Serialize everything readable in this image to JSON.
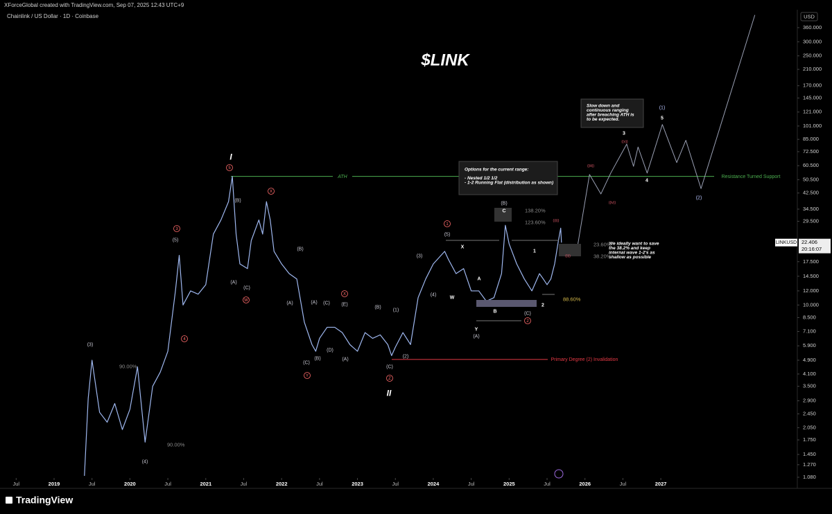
{
  "header": "XForceGlobal created with TradingView.com, Sep 07, 2025 12:43 UTC+9",
  "logo": "TradingView",
  "chart_data": {
    "type": "line",
    "title": "$LINK",
    "symbol": "Chainlink / US Dollar · 1D · Coinbase",
    "currency": "USD",
    "countdown": "20:16:07",
    "log_scale": true,
    "xlim": [
      2018.36,
      2028.8
    ],
    "xticks": [
      {
        "value": 2018.5,
        "label": "Jul"
      },
      2019,
      {
        "value": 2019.5,
        "label": "Jul"
      },
      2020,
      {
        "value": 2020.5,
        "label": "Jul"
      },
      2021,
      {
        "value": 2021.5,
        "label": "Jul"
      },
      2022,
      {
        "value": 2022.5,
        "label": "Jul"
      },
      2023,
      {
        "value": 2023.5,
        "label": "Jul"
      },
      2024,
      {
        "value": 2024.5,
        "label": "Jul"
      },
      2025,
      {
        "value": 2025.5,
        "label": "Jul"
      },
      2026,
      {
        "value": 2026.5,
        "label": "Jul"
      },
      2027
    ],
    "ylim": [
      1.07,
      438
    ],
    "yticks": [
      {
        "value": 360,
        "label": "360.000"
      },
      {
        "value": 300,
        "label": "300.000"
      },
      {
        "value": 250,
        "label": "250.000"
      },
      {
        "value": 210,
        "label": "210.000"
      },
      {
        "value": 170,
        "label": "170.000"
      },
      {
        "value": 145,
        "label": "145.000"
      },
      {
        "value": 121,
        "label": "121.000"
      },
      {
        "value": 101,
        "label": "101.000"
      },
      {
        "value": 85,
        "label": "85.000"
      },
      {
        "value": 72.5,
        "label": "72.500"
      },
      {
        "value": 60.5,
        "label": "60.500"
      },
      {
        "value": 50.5,
        "label": "50.500"
      },
      {
        "value": 42.5,
        "label": "42.500"
      },
      {
        "value": 34.5,
        "label": "34.500"
      },
      {
        "value": 29.5,
        "label": "29.500"
      },
      {
        "value": 17.5,
        "label": "17.500"
      },
      {
        "value": 14.5,
        "label": "14.500"
      },
      {
        "value": 12,
        "label": "12.000"
      },
      {
        "value": 10,
        "label": "10.000"
      },
      {
        "value": 8.5,
        "label": "8.500"
      },
      {
        "value": 7.1,
        "label": "7.100"
      },
      {
        "value": 5.9,
        "label": "5.900"
      },
      {
        "value": 4.9,
        "label": "4.900"
      },
      {
        "value": 4.1,
        "label": "4.100"
      },
      {
        "value": 3.5,
        "label": "3.500"
      },
      {
        "value": 2.9,
        "label": "2.900"
      },
      {
        "value": 2.45,
        "label": "2.450"
      },
      {
        "value": 2.05,
        "label": "2.050"
      },
      {
        "value": 1.75,
        "label": "1.750"
      },
      {
        "value": 1.45,
        "label": "1.450"
      },
      {
        "value": 1.27,
        "label": "1.270"
      },
      {
        "value": 1.08,
        "label": "1.080"
      }
    ],
    "x": [
      2019.4,
      2019.45,
      2019.5,
      2019.6,
      2019.7,
      2019.8,
      2019.9,
      2020.0,
      2020.1,
      2020.2,
      2020.3,
      2020.4,
      2020.5,
      2020.6,
      2020.65,
      2020.7,
      2020.8,
      2020.9,
      2021.0,
      2021.1,
      2021.2,
      2021.3,
      2021.35,
      2021.4,
      2021.45,
      2021.55,
      2021.6,
      2021.7,
      2021.75,
      2021.8,
      2021.85,
      2021.9,
      2022.0,
      2022.1,
      2022.2,
      2022.3,
      2022.4,
      2022.45,
      2022.5,
      2022.6,
      2022.7,
      2022.8,
      2022.9,
      2023.0,
      2023.1,
      2023.2,
      2023.3,
      2023.4,
      2023.45,
      2023.5,
      2023.6,
      2023.7,
      2023.8,
      2023.9,
      2024.0,
      2024.15,
      2024.2,
      2024.3,
      2024.4,
      2024.5,
      2024.6,
      2024.7,
      2024.8,
      2024.9,
      2024.95,
      2025.0,
      2025.1,
      2025.2,
      2025.3,
      2025.4,
      2025.45,
      2025.5,
      2025.55,
      2025.6,
      2025.65,
      2025.68,
      2025.69
    ],
    "series": [
      {
        "name": "LINKUSD",
        "color": "#9fb8f0",
        "values": [
          1.1,
          3,
          4.9,
          2.5,
          2.2,
          2.8,
          2.0,
          2.6,
          4.5,
          1.7,
          3.5,
          4.2,
          5.5,
          12,
          19,
          10,
          12,
          11.5,
          13,
          25,
          30,
          38,
          52.7,
          25,
          17,
          16,
          23,
          30,
          25,
          38,
          30,
          20,
          17,
          15,
          14,
          8,
          6,
          5.5,
          6.5,
          7.5,
          7.5,
          7,
          6,
          5.5,
          7,
          6.5,
          6.8,
          6,
          5.2,
          5.8,
          7,
          6,
          11,
          14,
          17,
          20,
          18,
          15,
          16,
          12,
          12,
          10.5,
          11,
          15,
          28,
          22,
          17,
          14,
          12,
          15,
          14,
          13,
          14,
          17,
          23,
          27,
          22.406
        ]
      }
    ],
    "projection": {
      "color": "#9aa0b4",
      "x": [
        2025.88,
        2026.06,
        2026.21,
        2026.34,
        2026.55,
        2026.64,
        2026.7,
        2026.82,
        2027.02,
        2027.21,
        2027.33,
        2027.53,
        2028.24
      ],
      "values": [
        18.8,
        54,
        42,
        55,
        80,
        60,
        77,
        55,
        103,
        63,
        84,
        45,
        424
      ]
    },
    "levels": [
      {
        "value": 52.7,
        "color": "#4caf50",
        "labels": [
          "ATH",
          "Resistance Turned Support"
        ]
      },
      {
        "value": 4.95,
        "color": "#e53945",
        "labels": [
          "Primary Degree (2) Invalidation"
        ]
      }
    ],
    "notes": [
      {
        "lines": [
          "Options for the current range:",
          "- Nested 1/2 1/2",
          "- 1-2 Running Flat (distribution as shown)"
        ]
      },
      {
        "lines": [
          "Slow down and",
          "continuous ranging",
          "after breaching ATH is",
          "to be expected."
        ]
      },
      {
        "lines": [
          "We ideally want to save",
          "the 38.2% and keep",
          "internal wave 1-2's as",
          "shallow as possible"
        ]
      }
    ],
    "annotations": [
      "I",
      "5",
      "(B)",
      "(A)",
      "(C)",
      "W",
      "X",
      "(B)",
      "(A)",
      "(A)",
      "(C)",
      "(E)",
      "X",
      "(C)",
      "(B)",
      "(D)",
      "(A)",
      "Y",
      "(B)",
      "(1)",
      "(2)",
      "(C)",
      "Z",
      "II",
      "(3)",
      "(4)",
      "(5)",
      "3",
      "4",
      "1",
      "(5)",
      "(3)",
      "(4)",
      "X",
      "A",
      "W",
      "Y",
      "(A)",
      "B",
      "(B)",
      "C",
      "(C)",
      "2",
      "1",
      "2",
      "((i))",
      "((ii))",
      "((iii))",
      "((iv))",
      "((v))",
      "3",
      "4",
      "5",
      "(1)",
      "(2)",
      "90.00%",
      "90.00%",
      "138.20%",
      "123.60%",
      "23.60%",
      "38.20%",
      "88.60%"
    ]
  }
}
